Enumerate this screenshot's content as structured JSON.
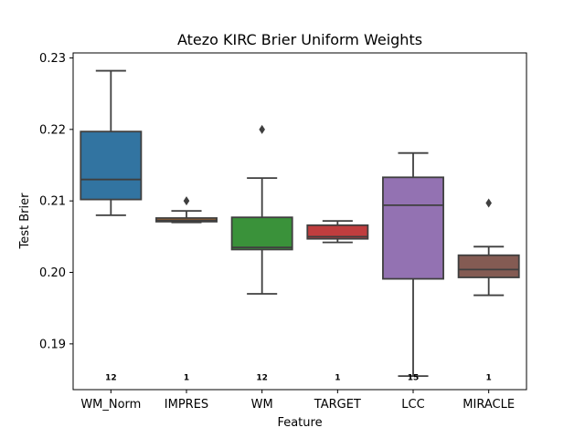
{
  "chart_data": {
    "type": "box",
    "title": "Atezo KIRC Brier Uniform Weights",
    "xlabel": "Feature",
    "ylabel": "Test Brier",
    "ylim": [
      0.1836,
      0.2307
    ],
    "yticks": [
      "0.19",
      "0.20",
      "0.21",
      "0.22",
      "0.23"
    ],
    "ytick_values": [
      0.19,
      0.2,
      0.21,
      0.22,
      0.23
    ],
    "grid": false,
    "categories": [
      "WM_Norm",
      "IMPRES",
      "WM",
      "TARGET",
      "LCC",
      "MIRACLE"
    ],
    "boxes": [
      {
        "name": "WM_Norm",
        "color": "#3274a1",
        "whisker_low": 0.208,
        "q1": 0.2102,
        "median": 0.213,
        "q3": 0.2197,
        "whisker_high": 0.2282,
        "outliers": [],
        "count_label": "12"
      },
      {
        "name": "IMPRES",
        "color": "#e1812c",
        "whisker_low": 0.207,
        "q1": 0.2071,
        "median": 0.2073,
        "q3": 0.2076,
        "whisker_high": 0.2086,
        "outliers": [
          0.21
        ],
        "count_label": "1"
      },
      {
        "name": "WM",
        "color": "#3a923a",
        "whisker_low": 0.197,
        "q1": 0.2032,
        "median": 0.2035,
        "q3": 0.2077,
        "whisker_high": 0.2132,
        "outliers": [
          0.22
        ],
        "count_label": "12"
      },
      {
        "name": "TARGET",
        "color": "#c03d3e",
        "whisker_low": 0.2042,
        "q1": 0.2047,
        "median": 0.205,
        "q3": 0.2066,
        "whisker_high": 0.2072,
        "outliers": [],
        "count_label": "1"
      },
      {
        "name": "LCC",
        "color": "#9372b2",
        "whisker_low": 0.1855,
        "q1": 0.1991,
        "median": 0.2094,
        "q3": 0.2133,
        "whisker_high": 0.2167,
        "outliers": [],
        "count_label": "15"
      },
      {
        "name": "MIRACLE",
        "color": "#845b53",
        "whisker_low": 0.1968,
        "q1": 0.1993,
        "median": 0.2004,
        "q3": 0.2024,
        "whisker_high": 0.2036,
        "outliers": [
          0.2097
        ],
        "count_label": "1"
      }
    ],
    "count_label_y": 0.1854
  }
}
